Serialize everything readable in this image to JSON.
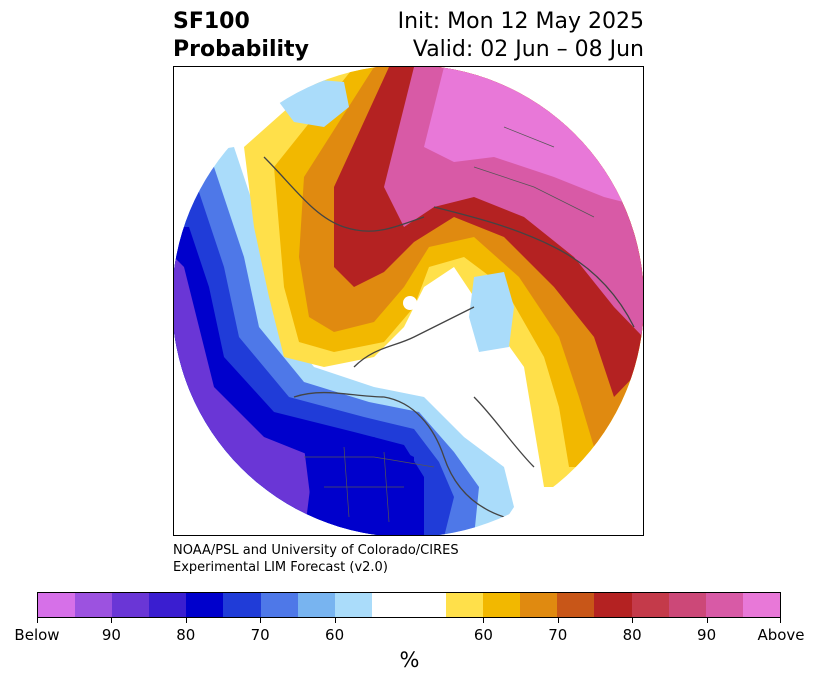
{
  "title": {
    "left_line1": "SF100",
    "left_line2": "Probability",
    "right_line1": "Init: Mon 12 May 2025",
    "right_line2": "Valid: 02 Jun – 08 Jun"
  },
  "credit": {
    "line1": "NOAA/PSL and University of Colorado/CIRES",
    "line2": "Experimental LIM Forecast (v2.0)"
  },
  "colorbar": {
    "colors": [
      "#d670e8",
      "#9c52e0",
      "#6a36d6",
      "#3a1ed0",
      "#0000cc",
      "#203cd8",
      "#4e78e8",
      "#78b4f0",
      "#aadcfa",
      "#ffffff",
      "#ffffff",
      "#ffe04a",
      "#f2b800",
      "#e08a10",
      "#c85618",
      "#b42222",
      "#c43a4a",
      "#cc4878",
      "#d85aa6",
      "#e878d8"
    ],
    "tick_labels": [
      "Below",
      "90",
      "80",
      "70",
      "60",
      "60",
      "70",
      "80",
      "90",
      "Above"
    ],
    "unit": "%"
  },
  "map": {
    "projection": "north-polar-stereographic",
    "palette": {
      "strong_above": "#e878d8",
      "above_90": "#d85aa6",
      "above_80": "#b42222",
      "above_70": "#e08a10",
      "above_60": "#ffe04a",
      "below_60": "#aadcfa",
      "below_70": "#4e78e8",
      "below_80": "#203cd8",
      "below_90": "#0000cc",
      "strong_below": "#6a36d6"
    }
  }
}
